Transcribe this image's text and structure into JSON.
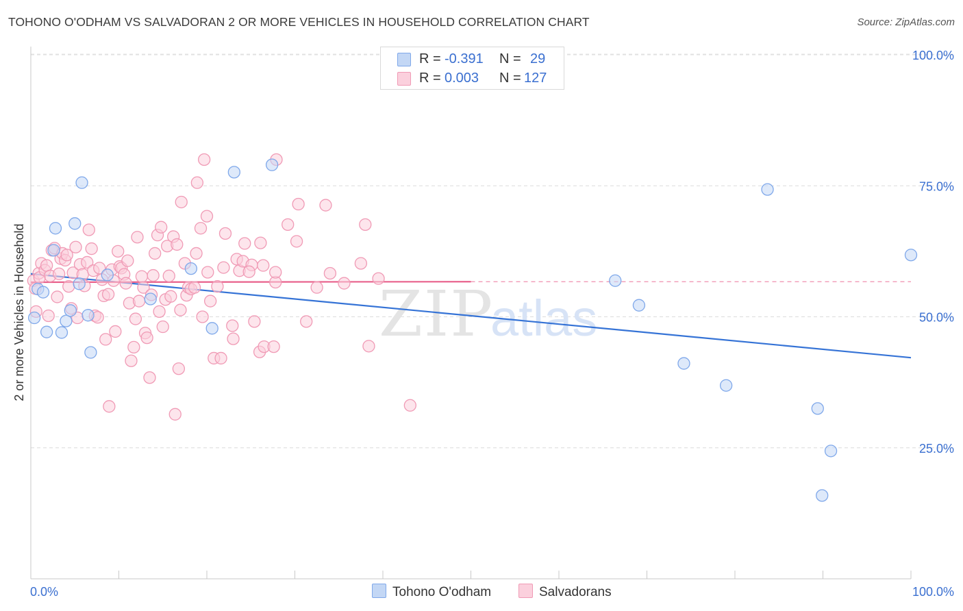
{
  "header": {
    "title": "TOHONO O'ODHAM VS SALVADORAN 2 OR MORE VEHICLES IN HOUSEHOLD CORRELATION CHART",
    "source": "Source: ZipAtlas.com"
  },
  "legend": {
    "r_label": "R =",
    "n_label": "N =",
    "rows": [
      {
        "r": "-0.391",
        "n": "29",
        "color": "#7fa8ea",
        "fill": "#c3d7f5"
      },
      {
        "r": "0.003",
        "n": "127",
        "color": "#f09ab5",
        "fill": "#fbd0dd"
      }
    ]
  },
  "watermark": {
    "zip": "ZIP",
    "atlas": "atlas"
  },
  "chart_data": {
    "type": "scatter",
    "ylabel": "2 or more Vehicles in Household",
    "xlabel": "",
    "xlim": [
      0,
      100
    ],
    "ylim": [
      0,
      100
    ],
    "x_tick_labels": [
      "0.0%",
      "100.0%"
    ],
    "y_ticks": [
      25,
      50,
      75,
      100
    ],
    "y_tick_labels": [
      "25.0%",
      "50.0%",
      "75.0%",
      "100.0%"
    ],
    "grid": true,
    "series": [
      {
        "name": "Tohono O'odham",
        "marker_color": "#7fa8ea",
        "marker_fill": "#c3d7f5",
        "line_color": "#3573d6",
        "trend": {
          "x": [
            0,
            100
          ],
          "y": [
            58.2,
            42.2
          ]
        },
        "points": [
          {
            "x": 0.4,
            "y": 49.8
          },
          {
            "x": 0.8,
            "y": 55.3
          },
          {
            "x": 1.4,
            "y": 54.7
          },
          {
            "x": 1.8,
            "y": 47.1
          },
          {
            "x": 2.6,
            "y": 62.7
          },
          {
            "x": 2.8,
            "y": 66.9
          },
          {
            "x": 3.5,
            "y": 47.0
          },
          {
            "x": 4.0,
            "y": 49.2
          },
          {
            "x": 4.5,
            "y": 51.2
          },
          {
            "x": 5.0,
            "y": 67.8
          },
          {
            "x": 5.5,
            "y": 56.3
          },
          {
            "x": 5.8,
            "y": 75.6
          },
          {
            "x": 6.5,
            "y": 50.3
          },
          {
            "x": 6.8,
            "y": 43.2
          },
          {
            "x": 8.7,
            "y": 58.0
          },
          {
            "x": 13.6,
            "y": 53.4
          },
          {
            "x": 18.2,
            "y": 59.2
          },
          {
            "x": 20.6,
            "y": 47.8
          },
          {
            "x": 23.1,
            "y": 77.6
          },
          {
            "x": 27.4,
            "y": 79.0
          },
          {
            "x": 66.4,
            "y": 56.9
          },
          {
            "x": 69.1,
            "y": 52.2
          },
          {
            "x": 74.2,
            "y": 41.1
          },
          {
            "x": 79.0,
            "y": 36.9
          },
          {
            "x": 83.7,
            "y": 74.3
          },
          {
            "x": 89.4,
            "y": 32.5
          },
          {
            "x": 90.9,
            "y": 24.4
          },
          {
            "x": 89.9,
            "y": 15.9
          },
          {
            "x": 100.0,
            "y": 61.8
          }
        ]
      },
      {
        "name": "Salvadorans",
        "marker_color": "#f09ab5",
        "marker_fill": "#fbd0dd",
        "line_color": "#e8608b",
        "trend": {
          "x": [
            0,
            50
          ],
          "y": [
            56.6,
            56.7
          ]
        },
        "trend_extension": {
          "x": [
            50,
            100
          ],
          "y": [
            56.7,
            56.7
          ]
        },
        "points": [
          {
            "x": 0.3,
            "y": 56.9
          },
          {
            "x": 0.5,
            "y": 55.4
          },
          {
            "x": 0.6,
            "y": 51.0
          },
          {
            "x": 0.9,
            "y": 58.3
          },
          {
            "x": 1.0,
            "y": 57.5
          },
          {
            "x": 1.2,
            "y": 60.2
          },
          {
            "x": 1.6,
            "y": 58.9
          },
          {
            "x": 1.8,
            "y": 59.8
          },
          {
            "x": 2.0,
            "y": 50.2
          },
          {
            "x": 2.2,
            "y": 57.8
          },
          {
            "x": 2.4,
            "y": 62.7
          },
          {
            "x": 2.7,
            "y": 63.1
          },
          {
            "x": 3.0,
            "y": 53.8
          },
          {
            "x": 3.2,
            "y": 58.2
          },
          {
            "x": 3.4,
            "y": 61.1
          },
          {
            "x": 3.6,
            "y": 62.1
          },
          {
            "x": 3.9,
            "y": 60.8
          },
          {
            "x": 4.1,
            "y": 61.8
          },
          {
            "x": 4.3,
            "y": 55.8
          },
          {
            "x": 4.6,
            "y": 51.6
          },
          {
            "x": 4.8,
            "y": 58.4
          },
          {
            "x": 5.1,
            "y": 63.3
          },
          {
            "x": 5.3,
            "y": 49.8
          },
          {
            "x": 5.6,
            "y": 60.0
          },
          {
            "x": 5.9,
            "y": 58.1
          },
          {
            "x": 6.1,
            "y": 55.9
          },
          {
            "x": 6.4,
            "y": 60.4
          },
          {
            "x": 6.6,
            "y": 66.6
          },
          {
            "x": 6.9,
            "y": 63.0
          },
          {
            "x": 7.1,
            "y": 58.8
          },
          {
            "x": 7.3,
            "y": 50.2
          },
          {
            "x": 7.6,
            "y": 49.9
          },
          {
            "x": 7.8,
            "y": 59.3
          },
          {
            "x": 8.1,
            "y": 57.1
          },
          {
            "x": 8.3,
            "y": 54.0
          },
          {
            "x": 8.5,
            "y": 45.7
          },
          {
            "x": 8.8,
            "y": 54.3
          },
          {
            "x": 8.9,
            "y": 32.9
          },
          {
            "x": 9.2,
            "y": 59.0
          },
          {
            "x": 9.4,
            "y": 56.9
          },
          {
            "x": 9.6,
            "y": 47.2
          },
          {
            "x": 9.9,
            "y": 62.5
          },
          {
            "x": 10.1,
            "y": 59.6
          },
          {
            "x": 10.3,
            "y": 59.3
          },
          {
            "x": 10.6,
            "y": 58.1
          },
          {
            "x": 10.8,
            "y": 56.4
          },
          {
            "x": 11.0,
            "y": 60.7
          },
          {
            "x": 11.2,
            "y": 52.6
          },
          {
            "x": 11.4,
            "y": 41.6
          },
          {
            "x": 11.7,
            "y": 44.2
          },
          {
            "x": 11.9,
            "y": 49.6
          },
          {
            "x": 12.1,
            "y": 65.2
          },
          {
            "x": 12.3,
            "y": 53.0
          },
          {
            "x": 12.6,
            "y": 57.7
          },
          {
            "x": 12.8,
            "y": 55.6
          },
          {
            "x": 13.0,
            "y": 46.9
          },
          {
            "x": 13.2,
            "y": 46.0
          },
          {
            "x": 13.5,
            "y": 38.4
          },
          {
            "x": 13.7,
            "y": 54.2
          },
          {
            "x": 13.9,
            "y": 57.9
          },
          {
            "x": 14.1,
            "y": 62.1
          },
          {
            "x": 14.4,
            "y": 65.6
          },
          {
            "x": 14.6,
            "y": 51.0
          },
          {
            "x": 14.8,
            "y": 67.1
          },
          {
            "x": 15.0,
            "y": 48.1
          },
          {
            "x": 15.3,
            "y": 53.3
          },
          {
            "x": 15.5,
            "y": 63.5
          },
          {
            "x": 15.7,
            "y": 57.8
          },
          {
            "x": 15.9,
            "y": 53.9
          },
          {
            "x": 16.2,
            "y": 65.3
          },
          {
            "x": 16.4,
            "y": 31.4
          },
          {
            "x": 16.6,
            "y": 63.8
          },
          {
            "x": 16.8,
            "y": 40.1
          },
          {
            "x": 17.0,
            "y": 51.3
          },
          {
            "x": 17.1,
            "y": 71.9
          },
          {
            "x": 17.5,
            "y": 60.2
          },
          {
            "x": 17.7,
            "y": 54.1
          },
          {
            "x": 17.9,
            "y": 55.6
          },
          {
            "x": 18.2,
            "y": 55.3
          },
          {
            "x": 18.6,
            "y": 55.6
          },
          {
            "x": 18.8,
            "y": 62.1
          },
          {
            "x": 18.9,
            "y": 75.6
          },
          {
            "x": 19.3,
            "y": 66.9
          },
          {
            "x": 19.5,
            "y": 50.0
          },
          {
            "x": 19.7,
            "y": 80.0
          },
          {
            "x": 20.0,
            "y": 69.2
          },
          {
            "x": 20.1,
            "y": 58.5
          },
          {
            "x": 20.4,
            "y": 53.0
          },
          {
            "x": 20.8,
            "y": 42.1
          },
          {
            "x": 21.2,
            "y": 55.8
          },
          {
            "x": 21.6,
            "y": 42.1
          },
          {
            "x": 21.9,
            "y": 59.4
          },
          {
            "x": 22.1,
            "y": 65.9
          },
          {
            "x": 22.9,
            "y": 48.3
          },
          {
            "x": 23.0,
            "y": 45.8
          },
          {
            "x": 23.4,
            "y": 61.0
          },
          {
            "x": 23.7,
            "y": 58.8
          },
          {
            "x": 24.1,
            "y": 60.6
          },
          {
            "x": 24.3,
            "y": 64.0
          },
          {
            "x": 25.1,
            "y": 59.9
          },
          {
            "x": 25.4,
            "y": 49.1
          },
          {
            "x": 26.0,
            "y": 43.3
          },
          {
            "x": 26.1,
            "y": 64.1
          },
          {
            "x": 26.4,
            "y": 59.8
          },
          {
            "x": 26.5,
            "y": 44.3
          },
          {
            "x": 27.6,
            "y": 44.3
          },
          {
            "x": 27.8,
            "y": 56.6
          },
          {
            "x": 27.8,
            "y": 58.5
          },
          {
            "x": 27.9,
            "y": 80.0
          },
          {
            "x": 29.2,
            "y": 67.6
          },
          {
            "x": 30.2,
            "y": 64.4
          },
          {
            "x": 30.4,
            "y": 71.5
          },
          {
            "x": 31.3,
            "y": 49.1
          },
          {
            "x": 32.5,
            "y": 55.6
          },
          {
            "x": 33.5,
            "y": 71.3
          },
          {
            "x": 34.0,
            "y": 58.3
          },
          {
            "x": 35.6,
            "y": 56.4
          },
          {
            "x": 37.5,
            "y": 60.2
          },
          {
            "x": 38.0,
            "y": 67.6
          },
          {
            "x": 38.4,
            "y": 44.4
          },
          {
            "x": 39.5,
            "y": 57.3
          },
          {
            "x": 43.1,
            "y": 33.1
          },
          {
            "x": 24.8,
            "y": 58.6
          }
        ]
      }
    ]
  }
}
